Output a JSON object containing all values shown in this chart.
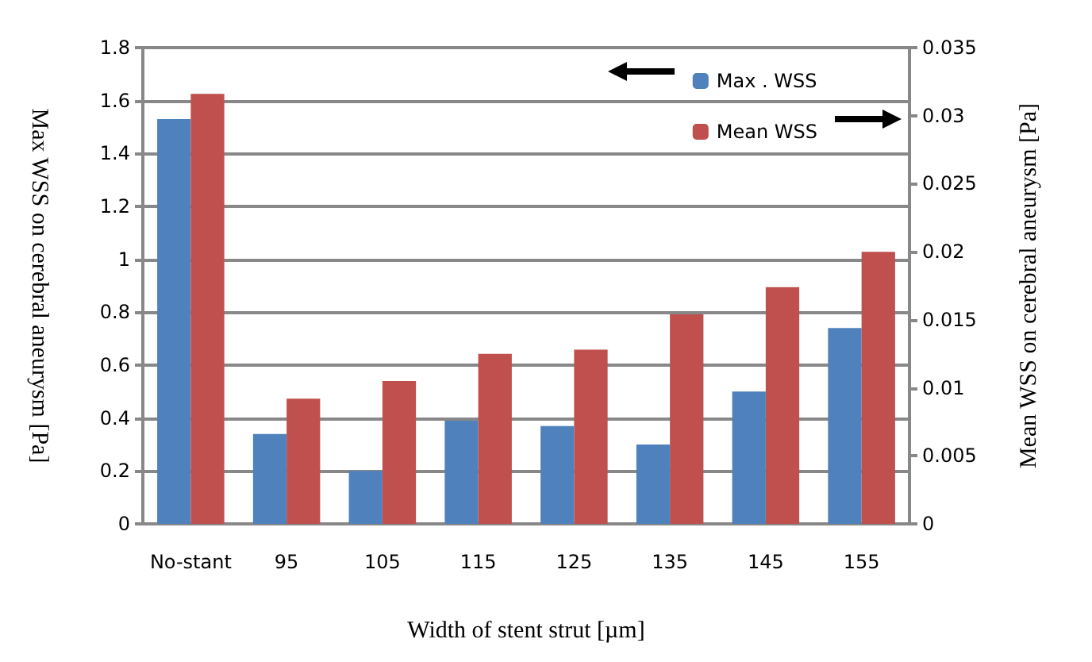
{
  "chart_data": {
    "type": "bar",
    "xlabel": "Width of stent strut [µm]",
    "ylabel": "Max WSS on cerebral aneurysm [Pa]",
    "y2label": "Mean WSS on cerebral aneurysm [Pa]",
    "categories": [
      "No-stant",
      "95",
      "105",
      "115",
      "125",
      "135",
      "145",
      "155"
    ],
    "series": [
      {
        "name": "Max . WSS",
        "color": "#4f81bd",
        "values": [
          1.53,
          0.34,
          0.2,
          0.39,
          0.37,
          0.3,
          0.5,
          0.74
        ]
      },
      {
        "name": "Mean WSS",
        "color": "#c0504d",
        "axis": "y2",
        "values": [
          0.0316,
          0.0092,
          0.0105,
          0.0125,
          0.0128,
          0.0154,
          0.0174,
          0.02
        ]
      }
    ],
    "ylim": [
      0,
      1.8
    ],
    "yticks": [
      0,
      0.2,
      0.4,
      0.6,
      0.8,
      1,
      1.2,
      1.4,
      1.6,
      1.8
    ],
    "y2lim": [
      0,
      0.035
    ],
    "y2ticks": [
      0,
      0.005,
      0.01,
      0.015,
      0.02,
      0.025,
      0.03,
      0.035
    ],
    "grid": "y",
    "legend": "top right"
  }
}
